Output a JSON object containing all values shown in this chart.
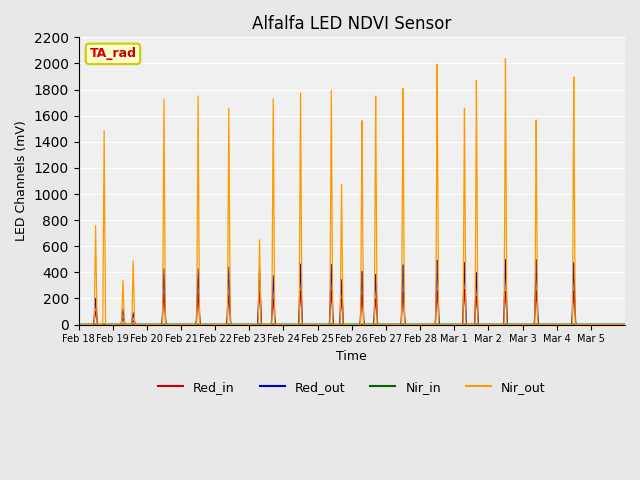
{
  "title": "Alfalfa LED NDVI Sensor",
  "ylabel": "LED Channels (mV)",
  "xlabel": "Time",
  "annotation_text": "TA_rad",
  "annotation_bg": "#ffffcc",
  "annotation_border": "#cccc00",
  "annotation_fg": "#cc0000",
  "fig_bg": "#e8e8e8",
  "plot_bg": "#f0f0f0",
  "ylim": [
    0,
    2200
  ],
  "yticks": [
    0,
    200,
    400,
    600,
    800,
    1000,
    1200,
    1400,
    1600,
    1800,
    2000,
    2200
  ],
  "x_tick_labels": [
    "Feb 18",
    "Feb 19",
    "Feb 20",
    "Feb 21",
    "Feb 22",
    "Feb 23",
    "Feb 24",
    "Feb 25",
    "Feb 26",
    "Feb 27",
    "Feb 28",
    "Mar 1",
    "Mar 2",
    "Mar 3",
    "Mar 4",
    "Mar 5"
  ],
  "spikes": [
    {
      "day": 0.5,
      "ri": 100,
      "ro": 200,
      "no": 760
    },
    {
      "day": 0.75,
      "ri": 0,
      "ro": 0,
      "no": 1490
    },
    {
      "day": 1.3,
      "ri": 50,
      "ro": 120,
      "no": 340
    },
    {
      "day": 1.6,
      "ri": 30,
      "ro": 90,
      "no": 490
    },
    {
      "day": 2.5,
      "ri": 240,
      "ro": 430,
      "no": 1740
    },
    {
      "day": 3.5,
      "ri": 240,
      "ro": 430,
      "no": 1770
    },
    {
      "day": 4.4,
      "ri": 230,
      "ro": 445,
      "no": 1680
    },
    {
      "day": 5.3,
      "ri": 250,
      "ro": 440,
      "no": 660
    },
    {
      "day": 5.7,
      "ri": 200,
      "ro": 380,
      "no": 1760
    },
    {
      "day": 6.5,
      "ri": 260,
      "ro": 470,
      "no": 1810
    },
    {
      "day": 7.4,
      "ri": 265,
      "ro": 470,
      "no": 1835
    },
    {
      "day": 7.7,
      "ri": 200,
      "ro": 350,
      "no": 1100
    },
    {
      "day": 8.3,
      "ri": 230,
      "ro": 415,
      "no": 1600
    },
    {
      "day": 8.7,
      "ri": 200,
      "ro": 390,
      "no": 1790
    },
    {
      "day": 9.5,
      "ri": 250,
      "ro": 465,
      "no": 1845
    },
    {
      "day": 10.5,
      "ri": 260,
      "ro": 500,
      "no": 2030
    },
    {
      "day": 11.3,
      "ri": 270,
      "ro": 480,
      "no": 1680
    },
    {
      "day": 11.65,
      "ri": 220,
      "ro": 400,
      "no": 1895
    },
    {
      "day": 12.5,
      "ri": 255,
      "ro": 500,
      "no": 2060
    },
    {
      "day": 13.4,
      "ri": 260,
      "ro": 500,
      "no": 1580
    },
    {
      "day": 14.5,
      "ri": 255,
      "ro": 475,
      "no": 1905
    }
  ],
  "colors": {
    "red_in": "#cc0000",
    "red_out": "#0000cc",
    "nir_in": "#006600",
    "nir_out": "#ff9900"
  }
}
